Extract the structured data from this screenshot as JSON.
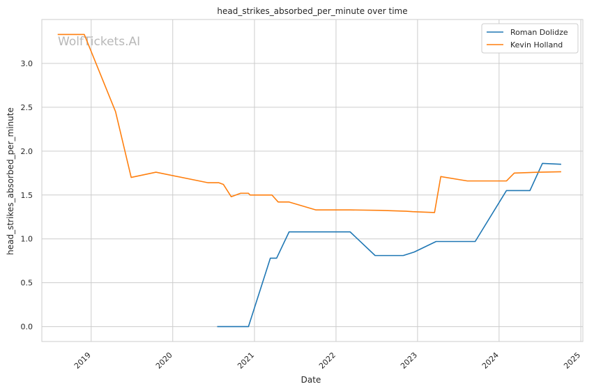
{
  "chart_data": {
    "type": "line",
    "title": "head_strikes_absorbed_per_minute over time",
    "xlabel": "Date",
    "ylabel": "head_strikes_absorbed_per_minute",
    "watermark": "WolfTickets.AI",
    "xlim": [
      "2018-05-25",
      "2025-01-10"
    ],
    "ylim": [
      -0.17,
      3.5
    ],
    "x_ticks": [
      {
        "date": "2019-01-01",
        "label": "2019"
      },
      {
        "date": "2020-01-01",
        "label": "2020"
      },
      {
        "date": "2021-01-01",
        "label": "2021"
      },
      {
        "date": "2022-01-01",
        "label": "2022"
      },
      {
        "date": "2023-01-01",
        "label": "2023"
      },
      {
        "date": "2024-01-01",
        "label": "2024"
      },
      {
        "date": "2025-01-01",
        "label": "2025"
      }
    ],
    "y_ticks": [
      {
        "value": 0.0,
        "label": "0.0"
      },
      {
        "value": 0.5,
        "label": "0.5"
      },
      {
        "value": 1.0,
        "label": "1.0"
      },
      {
        "value": 1.5,
        "label": "1.5"
      },
      {
        "value": 2.0,
        "label": "2.0"
      },
      {
        "value": 2.5,
        "label": "2.5"
      },
      {
        "value": 3.0,
        "label": "3.0"
      }
    ],
    "grid": true,
    "legend_position": "top-right",
    "series": [
      {
        "name": "Roman Dolidze",
        "color": "#1f77b4",
        "points": [
          {
            "x": "2020-07-18",
            "y": 0.0
          },
          {
            "x": "2020-12-05",
            "y": 0.0
          },
          {
            "x": "2021-03-13",
            "y": 0.78
          },
          {
            "x": "2021-04-10",
            "y": 0.78
          },
          {
            "x": "2021-06-05",
            "y": 1.08
          },
          {
            "x": "2022-03-05",
            "y": 1.08
          },
          {
            "x": "2022-06-25",
            "y": 0.81
          },
          {
            "x": "2022-10-29",
            "y": 0.81
          },
          {
            "x": "2022-12-17",
            "y": 0.85
          },
          {
            "x": "2023-03-25",
            "y": 0.97
          },
          {
            "x": "2023-09-16",
            "y": 0.97
          },
          {
            "x": "2024-02-03",
            "y": 1.55
          },
          {
            "x": "2024-05-18",
            "y": 1.55
          },
          {
            "x": "2024-07-13",
            "y": 1.86
          },
          {
            "x": "2024-10-05",
            "y": 1.85
          }
        ]
      },
      {
        "name": "Kevin Holland",
        "color": "#ff7f0e",
        "points": [
          {
            "x": "2018-08-04",
            "y": 3.33
          },
          {
            "x": "2018-12-01",
            "y": 3.33
          },
          {
            "x": "2019-04-20",
            "y": 2.45
          },
          {
            "x": "2019-06-29",
            "y": 1.7
          },
          {
            "x": "2019-10-18",
            "y": 1.76
          },
          {
            "x": "2020-06-06",
            "y": 1.64
          },
          {
            "x": "2020-07-25",
            "y": 1.64
          },
          {
            "x": "2020-08-15",
            "y": 1.62
          },
          {
            "x": "2020-09-19",
            "y": 1.48
          },
          {
            "x": "2020-10-31",
            "y": 1.52
          },
          {
            "x": "2020-12-05",
            "y": 1.52
          },
          {
            "x": "2020-12-12",
            "y": 1.5
          },
          {
            "x": "2021-03-20",
            "y": 1.5
          },
          {
            "x": "2021-04-17",
            "y": 1.42
          },
          {
            "x": "2021-06-05",
            "y": 1.42
          },
          {
            "x": "2021-10-02",
            "y": 1.33
          },
          {
            "x": "2022-03-05",
            "y": 1.33
          },
          {
            "x": "2022-07-16",
            "y": 1.325
          },
          {
            "x": "2022-11-12",
            "y": 1.315
          },
          {
            "x": "2022-12-10",
            "y": 1.31
          },
          {
            "x": "2023-03-18",
            "y": 1.3
          },
          {
            "x": "2023-04-15",
            "y": 1.71
          },
          {
            "x": "2023-08-12",
            "y": 1.66
          },
          {
            "x": "2024-02-03",
            "y": 1.66
          },
          {
            "x": "2024-03-09",
            "y": 1.75
          },
          {
            "x": "2024-06-29",
            "y": 1.76
          },
          {
            "x": "2024-10-05",
            "y": 1.765
          }
        ]
      }
    ]
  }
}
